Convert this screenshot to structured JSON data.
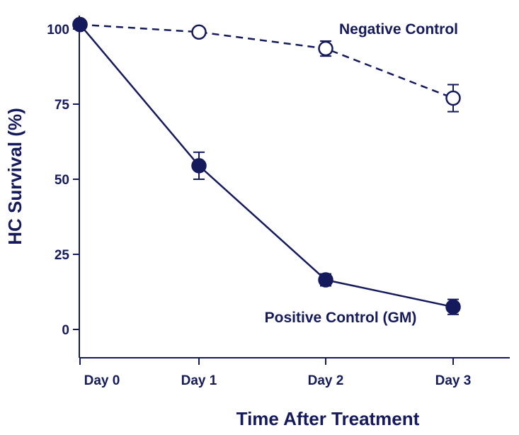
{
  "chart_data": {
    "type": "line",
    "title": "",
    "xlabel": "Time After Treatment",
    "ylabel": "HC Survival (%)",
    "categories": [
      "Day 0",
      "Day 1",
      "Day 2",
      "Day 3"
    ],
    "ylim": [
      -5,
      105
    ],
    "yticks": [
      0,
      25,
      50,
      75,
      100
    ],
    "grid": false,
    "series": [
      {
        "name": "Negative Control",
        "values": [
          101.5,
          99,
          93.5,
          77
        ],
        "errors": [
          0,
          0,
          2.5,
          4.5
        ],
        "line_style": "dashed",
        "marker": "open-circle"
      },
      {
        "name": "Positive Control (GM)",
        "values": [
          101.5,
          54.5,
          16.5,
          7.5
        ],
        "errors": [
          0,
          4.5,
          2,
          2.5
        ],
        "line_style": "solid",
        "marker": "filled-circle"
      }
    ],
    "colors": {
      "ink": "#151a5c",
      "background": "#ffffff"
    }
  }
}
